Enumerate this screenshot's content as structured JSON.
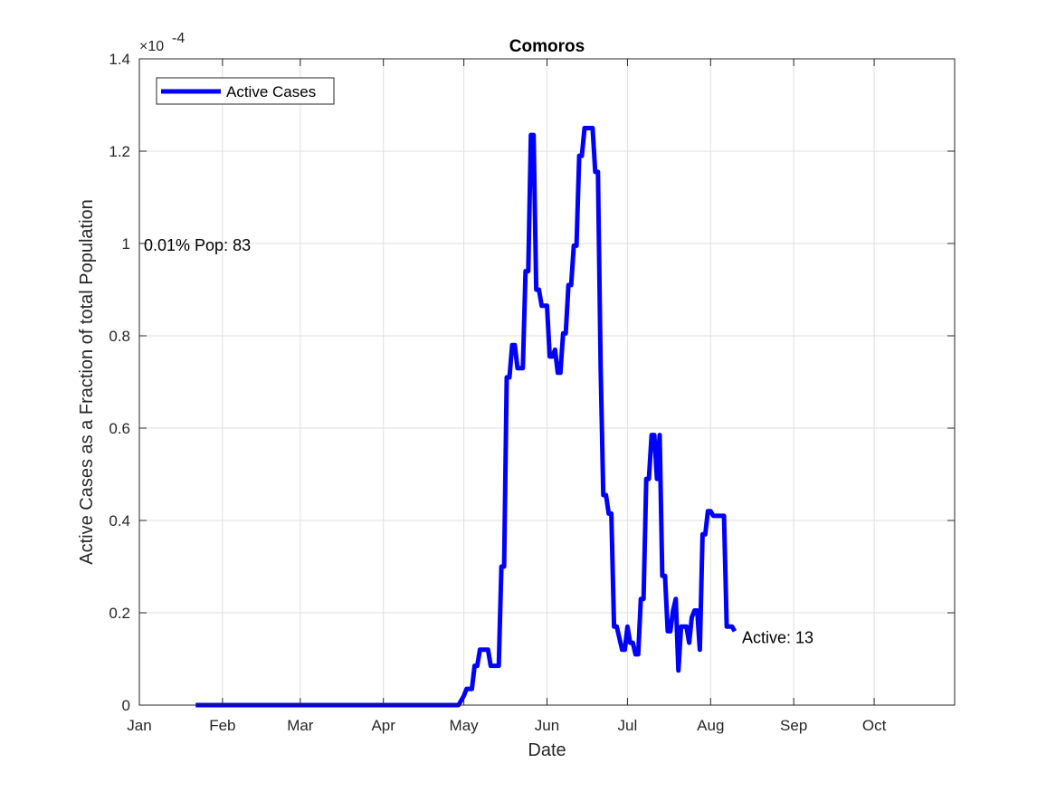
{
  "chart_data": {
    "type": "line",
    "title": "Comoros",
    "xlabel": "Date",
    "ylabel": "Active Cases as a Fraction of total Population",
    "y_exponent_label": "×10",
    "y_exponent_power": "-4",
    "xlim": [
      "2020-01-01",
      "2020-10-31"
    ],
    "ylim": [
      0,
      1.4
    ],
    "y_scale_factor": 0.0001,
    "x_tick_labels": [
      "Jan",
      "Feb",
      "Mar",
      "Apr",
      "May",
      "Jun",
      "Jul",
      "Aug",
      "Sep",
      "Oct"
    ],
    "x_tick_dates": [
      "2020-01-01",
      "2020-02-01",
      "2020-03-01",
      "2020-04-01",
      "2020-05-01",
      "2020-06-01",
      "2020-07-01",
      "2020-08-01",
      "2020-09-01",
      "2020-10-01"
    ],
    "y_tick_labels": [
      "0",
      "0.2",
      "0.4",
      "0.6",
      "0.8",
      "1",
      "1.2",
      "1.4"
    ],
    "y_tick_values": [
      0,
      0.2,
      0.4,
      0.6,
      0.8,
      1.0,
      1.2,
      1.4
    ],
    "grid": true,
    "legend_position": "top-left",
    "series": [
      {
        "name": "Active Cases",
        "color": "#0000ff",
        "points": [
          [
            "2020-01-22",
            0
          ],
          [
            "2020-04-29",
            0
          ],
          [
            "2020-04-30",
            0.01
          ],
          [
            "2020-05-01",
            0.02
          ],
          [
            "2020-05-02",
            0.035
          ],
          [
            "2020-05-04",
            0.035
          ],
          [
            "2020-05-05",
            0.085
          ],
          [
            "2020-05-06",
            0.085
          ],
          [
            "2020-05-07",
            0.12
          ],
          [
            "2020-05-10",
            0.12
          ],
          [
            "2020-05-11",
            0.085
          ],
          [
            "2020-05-14",
            0.085
          ],
          [
            "2020-05-15",
            0.3
          ],
          [
            "2020-05-16",
            0.3
          ],
          [
            "2020-05-17",
            0.71
          ],
          [
            "2020-05-18",
            0.71
          ],
          [
            "2020-05-19",
            0.78
          ],
          [
            "2020-05-20",
            0.78
          ],
          [
            "2020-05-21",
            0.73
          ],
          [
            "2020-05-23",
            0.73
          ],
          [
            "2020-05-24",
            0.94
          ],
          [
            "2020-05-25",
            0.94
          ],
          [
            "2020-05-26",
            1.235
          ],
          [
            "2020-05-27",
            1.235
          ],
          [
            "2020-05-28",
            0.9
          ],
          [
            "2020-05-29",
            0.9
          ],
          [
            "2020-05-30",
            0.865
          ],
          [
            "2020-06-01",
            0.865
          ],
          [
            "2020-06-02",
            0.755
          ],
          [
            "2020-06-03",
            0.755
          ],
          [
            "2020-06-04",
            0.77
          ],
          [
            "2020-06-05",
            0.72
          ],
          [
            "2020-06-06",
            0.72
          ],
          [
            "2020-06-07",
            0.805
          ],
          [
            "2020-06-08",
            0.805
          ],
          [
            "2020-06-09",
            0.91
          ],
          [
            "2020-06-10",
            0.91
          ],
          [
            "2020-06-11",
            0.995
          ],
          [
            "2020-06-12",
            0.995
          ],
          [
            "2020-06-13",
            1.19
          ],
          [
            "2020-06-14",
            1.19
          ],
          [
            "2020-06-15",
            1.25
          ],
          [
            "2020-06-18",
            1.25
          ],
          [
            "2020-06-19",
            1.155
          ],
          [
            "2020-06-20",
            1.155
          ],
          [
            "2020-06-21",
            0.73
          ],
          [
            "2020-06-22",
            0.455
          ],
          [
            "2020-06-23",
            0.455
          ],
          [
            "2020-06-24",
            0.415
          ],
          [
            "2020-06-25",
            0.415
          ],
          [
            "2020-06-26",
            0.17
          ],
          [
            "2020-06-27",
            0.17
          ],
          [
            "2020-06-28",
            0.145
          ],
          [
            "2020-06-29",
            0.12
          ],
          [
            "2020-06-30",
            0.12
          ],
          [
            "2020-07-01",
            0.17
          ],
          [
            "2020-07-02",
            0.135
          ],
          [
            "2020-07-03",
            0.135
          ],
          [
            "2020-07-04",
            0.11
          ],
          [
            "2020-07-05",
            0.11
          ],
          [
            "2020-07-06",
            0.23
          ],
          [
            "2020-07-07",
            0.23
          ],
          [
            "2020-07-08",
            0.49
          ],
          [
            "2020-07-09",
            0.49
          ],
          [
            "2020-07-10",
            0.585
          ],
          [
            "2020-07-11",
            0.585
          ],
          [
            "2020-07-12",
            0.49
          ],
          [
            "2020-07-13",
            0.585
          ],
          [
            "2020-07-14",
            0.28
          ],
          [
            "2020-07-15",
            0.28
          ],
          [
            "2020-07-16",
            0.16
          ],
          [
            "2020-07-17",
            0.16
          ],
          [
            "2020-07-18",
            0.205
          ],
          [
            "2020-07-19",
            0.23
          ],
          [
            "2020-07-20",
            0.075
          ],
          [
            "2020-07-21",
            0.17
          ],
          [
            "2020-07-23",
            0.17
          ],
          [
            "2020-07-24",
            0.135
          ],
          [
            "2020-07-25",
            0.19
          ],
          [
            "2020-07-26",
            0.205
          ],
          [
            "2020-07-27",
            0.205
          ],
          [
            "2020-07-28",
            0.12
          ],
          [
            "2020-07-29",
            0.37
          ],
          [
            "2020-07-30",
            0.37
          ],
          [
            "2020-07-31",
            0.42
          ],
          [
            "2020-08-01",
            0.42
          ],
          [
            "2020-08-02",
            0.41
          ],
          [
            "2020-08-06",
            0.41
          ],
          [
            "2020-08-07",
            0.17
          ],
          [
            "2020-08-09",
            0.17
          ],
          [
            "2020-08-10",
            0.16
          ]
        ]
      }
    ],
    "annotations": {
      "pop_label": "0.01% Pop: 83",
      "pop_label_value": 1.0,
      "active_label": "Active: 13",
      "active_label_value": 0.16
    }
  }
}
